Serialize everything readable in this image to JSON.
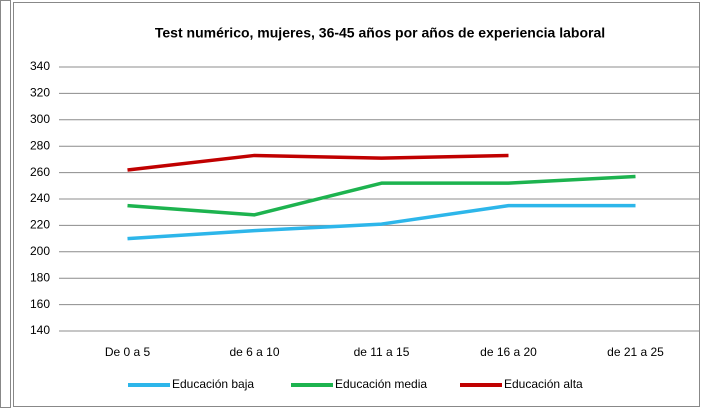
{
  "chart_data": {
    "type": "line",
    "title": "Test numérico, mujeres, 36-45 años por años de experiencia laboral",
    "categories": [
      "De 0 a 5",
      "de 6 a 10",
      "de 11 a 15",
      "de 16 a 20",
      "de 21 a 25"
    ],
    "series": [
      {
        "name": "Educación baja",
        "color": "#2db6ea",
        "values": [
          210,
          216,
          221,
          235,
          235
        ]
      },
      {
        "name": "Educación media",
        "color": "#1db34f",
        "values": [
          235,
          228,
          252,
          252,
          257
        ]
      },
      {
        "name": "Educación alta",
        "color": "#c00000",
        "values": [
          262,
          273,
          271,
          273,
          null
        ]
      }
    ],
    "ylim": [
      140,
      340
    ],
    "yticks": [
      140,
      160,
      180,
      200,
      220,
      240,
      260,
      280,
      300,
      320,
      340
    ],
    "grid": true,
    "legend": "bottom"
  }
}
